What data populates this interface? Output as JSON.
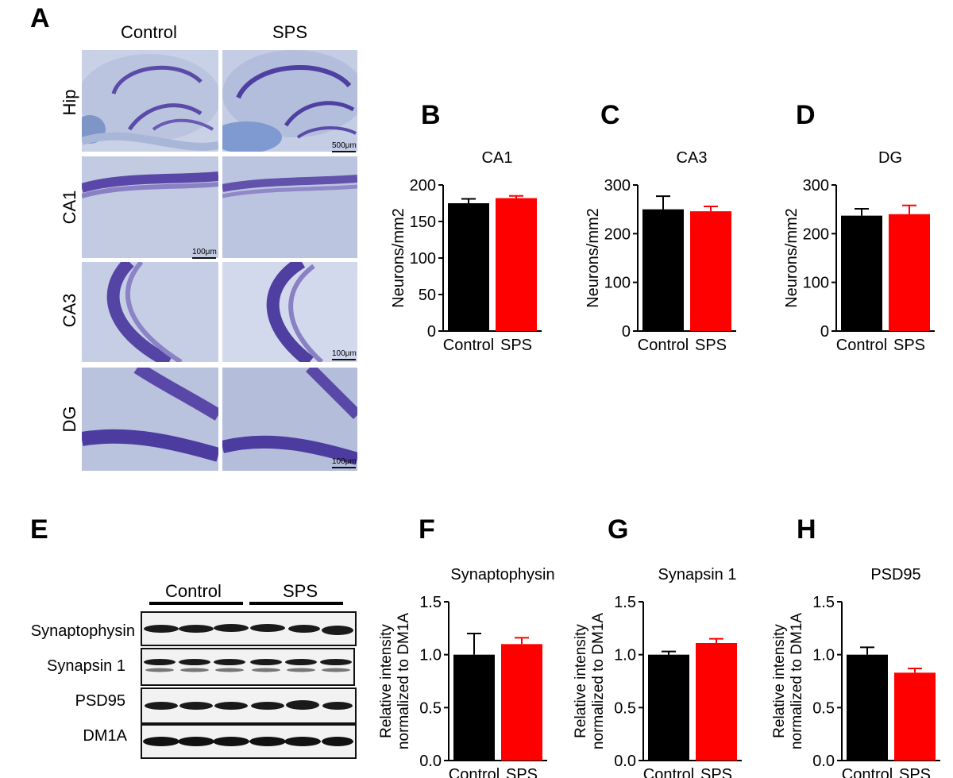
{
  "panels": {
    "A": "A",
    "B": "B",
    "C": "C",
    "D": "D",
    "E": "E",
    "F": "F",
    "G": "G",
    "H": "H"
  },
  "histology": {
    "columns": [
      "Control",
      "SPS"
    ],
    "rows": [
      "Hip",
      "CA1",
      "CA3",
      "DG"
    ],
    "scale_bars": [
      "500μm",
      "100μm",
      "100μm",
      "100μm"
    ]
  },
  "colors": {
    "control": "#000000",
    "sps": "#ff0000",
    "stain_dark": "#4a3a9a",
    "stain_light": "#b8c3dc"
  },
  "chart_data": [
    {
      "type": "bar",
      "title": "CA1",
      "categories": [
        "Control",
        "SPS"
      ],
      "values": [
        175,
        182
      ],
      "errors": [
        6,
        3
      ],
      "ylabel": "Neurons/mm2",
      "ylim": [
        0,
        200
      ],
      "yticks": [
        0,
        50,
        100,
        150,
        200
      ]
    },
    {
      "type": "bar",
      "title": "CA3",
      "categories": [
        "Control",
        "SPS"
      ],
      "values": [
        250,
        246
      ],
      "errors": [
        27,
        10
      ],
      "ylabel": "Neurons/mm2",
      "ylim": [
        0,
        300
      ],
      "yticks": [
        0,
        100,
        200,
        300
      ]
    },
    {
      "type": "bar",
      "title": "DG",
      "categories": [
        "Control",
        "SPS"
      ],
      "values": [
        237,
        240
      ],
      "errors": [
        14,
        18
      ],
      "ylabel": "Neurons/mm2",
      "ylim": [
        0,
        300
      ],
      "yticks": [
        0,
        100,
        200,
        300
      ]
    },
    {
      "type": "bar",
      "title": "Synaptophysin",
      "categories": [
        "Control",
        "SPS"
      ],
      "values": [
        1.0,
        1.1
      ],
      "errors": [
        0.2,
        0.06
      ],
      "ylabel": [
        "Relative intensity",
        "normalized to DM1A"
      ],
      "ylim": [
        0,
        1.5
      ],
      "yticks": [
        0.0,
        0.5,
        1.0,
        1.5
      ]
    },
    {
      "type": "bar",
      "title": "Synapsin 1",
      "categories": [
        "Control",
        "SPS"
      ],
      "values": [
        1.0,
        1.11
      ],
      "errors": [
        0.03,
        0.04
      ],
      "ylabel": [
        "Relative intensity",
        "normalized to DM1A"
      ],
      "ylim": [
        0,
        1.5
      ],
      "yticks": [
        0.0,
        0.5,
        1.0,
        1.5
      ]
    },
    {
      "type": "bar",
      "title": "PSD95",
      "categories": [
        "Control",
        "SPS"
      ],
      "values": [
        1.0,
        0.83
      ],
      "errors": [
        0.07,
        0.04
      ],
      "ylabel": [
        "Relative intensity",
        "normalized to DM1A"
      ],
      "ylim": [
        0,
        1.5
      ],
      "yticks": [
        0.0,
        0.5,
        1.0,
        1.5
      ]
    }
  ],
  "blot": {
    "groups": [
      "Control",
      "SPS"
    ],
    "proteins": [
      "Synaptophysin",
      "Synapsin 1",
      "PSD95",
      "DM1A"
    ]
  }
}
